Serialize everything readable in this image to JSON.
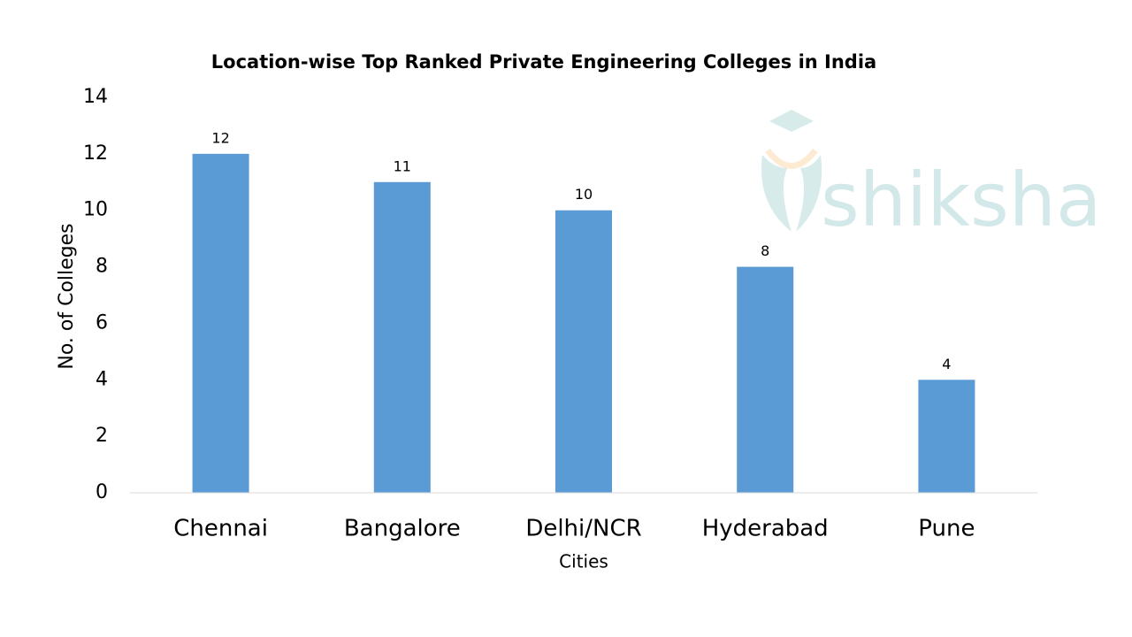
{
  "chart_data": {
    "type": "bar",
    "title": "Location-wise Top Ranked Private Engineering Colleges in India",
    "x_label": "Cities",
    "y_label": "No. of Colleges",
    "categories": [
      "Chennai",
      "Bangalore",
      "Delhi/NCR",
      "Hyderabad",
      "Pune"
    ],
    "values": [
      12,
      11,
      10,
      8,
      4
    ],
    "color": "#5b9bd5",
    "ylim": [
      0,
      14
    ],
    "yticks": [
      0,
      2,
      4,
      6,
      8,
      10,
      12,
      14
    ],
    "grid": false,
    "watermark": "shiksha"
  }
}
